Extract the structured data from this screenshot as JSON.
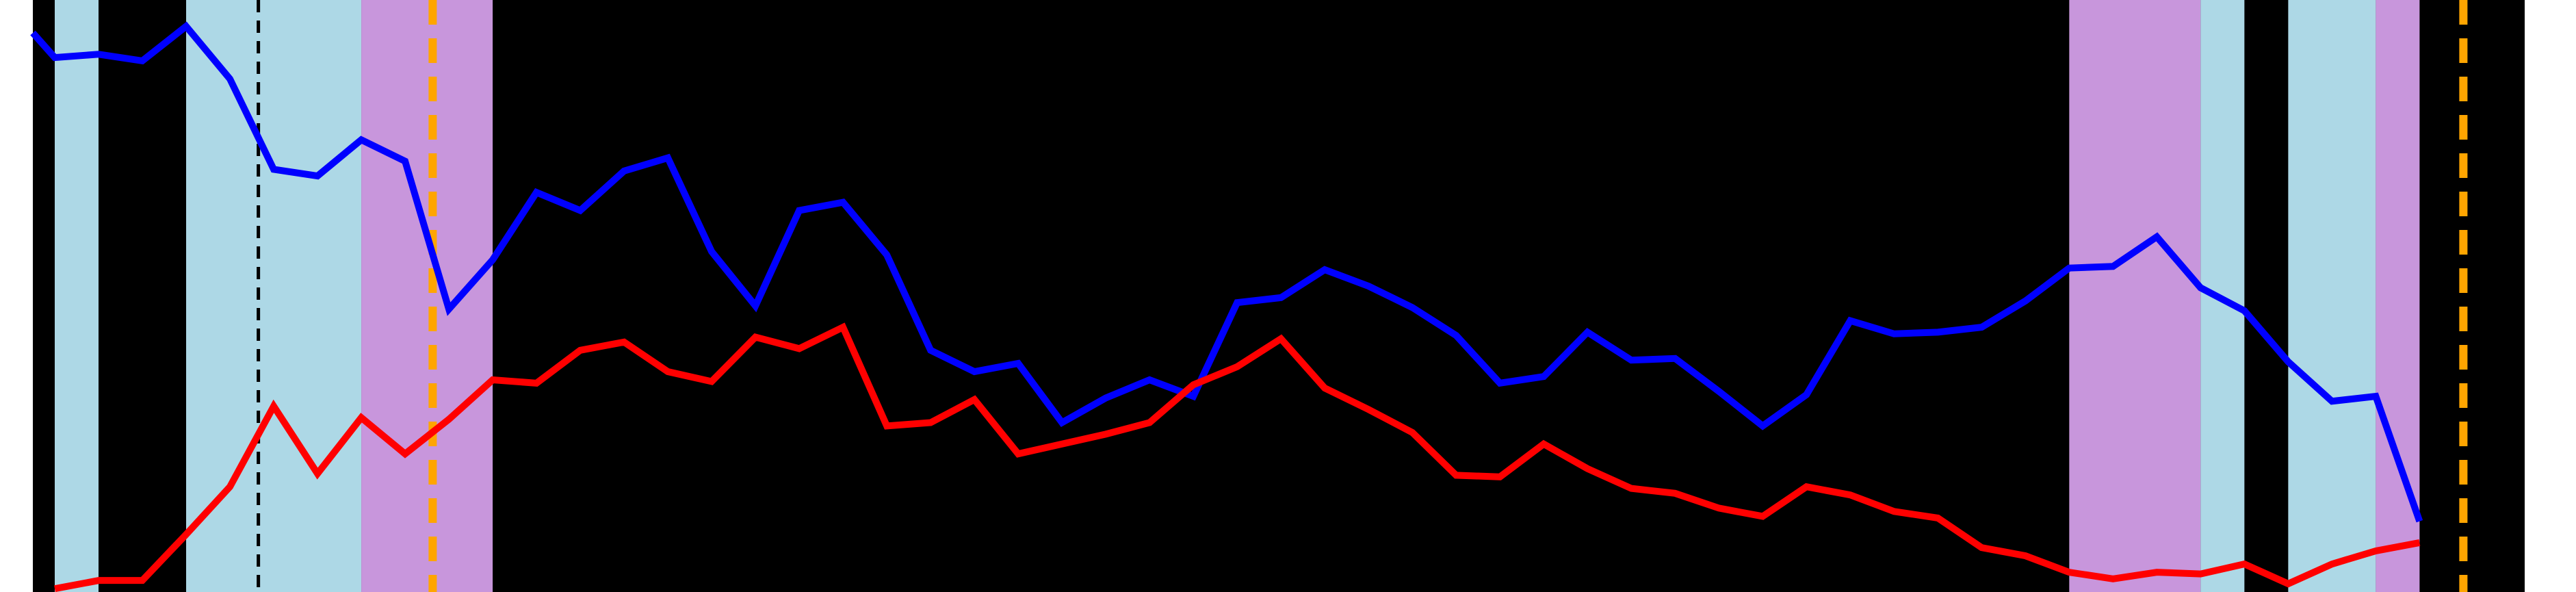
{
  "chart_data": {
    "type": "line",
    "background": "#000000",
    "x": [
      -0.5,
      0,
      1,
      2,
      3,
      4,
      5,
      6,
      7,
      8,
      9,
      10,
      11,
      12,
      13,
      14,
      15,
      16,
      17,
      18,
      19,
      20,
      21,
      22,
      23,
      24,
      25,
      26,
      27,
      28,
      29,
      30,
      31,
      32,
      33,
      34,
      35,
      36,
      37,
      38,
      39,
      40,
      41,
      42,
      43,
      44,
      45,
      46,
      47,
      48,
      49,
      50,
      51,
      52,
      53,
      54
    ],
    "series": [
      {
        "color": "#0000ff",
        "values": [
          340,
          325,
          327,
          323,
          344,
          312,
          257,
          253,
          275,
          262,
          172,
          202,
          243,
          232,
          256,
          264,
          207,
          174,
          232,
          237,
          205,
          147,
          134,
          139,
          103,
          118,
          129,
          119,
          176,
          179,
          196,
          186,
          173,
          156,
          127,
          131,
          158,
          141,
          142,
          122,
          101,
          120,
          165,
          157,
          158,
          161,
          177,
          197,
          198,
          216,
          185,
          171,
          140,
          116,
          119,
          43
        ]
      },
      {
        "color": "#ff0000",
        "values": [
          null,
          2,
          7,
          7,
          35,
          64,
          113,
          72,
          106,
          84,
          105,
          129,
          127,
          147,
          152,
          134,
          128,
          155,
          148,
          161,
          101,
          103,
          117,
          84,
          90,
          96,
          103,
          126,
          137,
          154,
          124,
          111,
          97,
          71,
          70,
          90,
          75,
          63,
          60,
          51,
          46,
          64,
          59,
          49,
          45,
          27,
          22,
          12,
          8,
          12,
          11,
          17,
          5,
          17,
          25,
          30
        ]
      }
    ],
    "spans": [
      {
        "x0": 0,
        "x1": 1,
        "color": "#add8e6"
      },
      {
        "x0": 3,
        "x1": 7,
        "color": "#add8e6"
      },
      {
        "x0": 7,
        "x1": 10,
        "color": "#c896dc"
      },
      {
        "x0": 46,
        "x1": 49,
        "color": "#c896dc"
      },
      {
        "x0": 49,
        "x1": 50,
        "color": "#add8e6"
      },
      {
        "x0": 51,
        "x1": 53,
        "color": "#add8e6"
      },
      {
        "x0": 53,
        "x1": 54,
        "color": "#c896dc"
      }
    ],
    "vlines": [
      {
        "x": 4.65,
        "color": "#000000"
      },
      {
        "x": 8.63,
        "color": "#ffa500"
      },
      {
        "x": 55,
        "color": "#ffa500"
      }
    ],
    "xlim": [
      -0.5,
      56.4
    ],
    "ylim": [
      0,
      360
    ]
  }
}
